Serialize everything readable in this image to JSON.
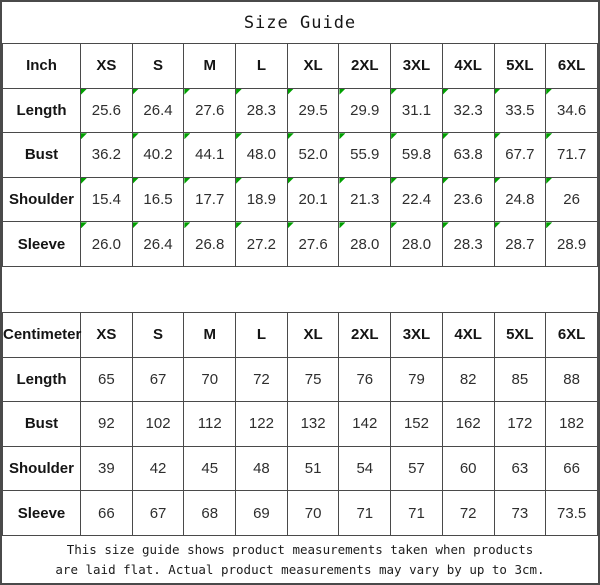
{
  "title": "Size Guide",
  "colors": {
    "border": "#4a4a4a",
    "text": "#1c1c1c",
    "flag_green": "#00a000",
    "background": "#ffffff"
  },
  "tables": [
    {
      "unit_label": "Inch",
      "sizes": [
        "XS",
        "S",
        "M",
        "L",
        "XL",
        "2XL",
        "3XL",
        "4XL",
        "5XL",
        "6XL"
      ],
      "rows": [
        {
          "label": "Length",
          "values": [
            "25.6",
            "26.4",
            "27.6",
            "28.3",
            "29.5",
            "29.9",
            "31.1",
            "32.3",
            "33.5",
            "34.6"
          ]
        },
        {
          "label": "Bust",
          "values": [
            "36.2",
            "40.2",
            "44.1",
            "48.0",
            "52.0",
            "55.9",
            "59.8",
            "63.8",
            "67.7",
            "71.7"
          ]
        },
        {
          "label": "Shoulder",
          "values": [
            "15.4",
            "16.5",
            "17.7",
            "18.9",
            "20.1",
            "21.3",
            "22.4",
            "23.6",
            "24.8",
            "26"
          ]
        },
        {
          "label": "Sleeve",
          "values": [
            "26.0",
            "26.4",
            "26.8",
            "27.2",
            "27.6",
            "28.0",
            "28.0",
            "28.3",
            "28.7",
            "28.9"
          ]
        }
      ],
      "has_flag_markers": true
    },
    {
      "unit_label": "Centimeter",
      "sizes": [
        "XS",
        "S",
        "M",
        "L",
        "XL",
        "2XL",
        "3XL",
        "4XL",
        "5XL",
        "6XL"
      ],
      "rows": [
        {
          "label": "Length",
          "values": [
            "65",
            "67",
            "70",
            "72",
            "75",
            "76",
            "79",
            "82",
            "85",
            "88"
          ]
        },
        {
          "label": "Bust",
          "values": [
            "92",
            "102",
            "112",
            "122",
            "132",
            "142",
            "152",
            "162",
            "172",
            "182"
          ]
        },
        {
          "label": "Shoulder",
          "values": [
            "39",
            "42",
            "45",
            "48",
            "51",
            "54",
            "57",
            "60",
            "63",
            "66"
          ]
        },
        {
          "label": "Sleeve",
          "values": [
            "66",
            "67",
            "68",
            "69",
            "70",
            "71",
            "71",
            "72",
            "73",
            "73.5"
          ]
        }
      ],
      "has_flag_markers": false
    }
  ],
  "footer": {
    "line1": "This size guide shows product measurements taken when products",
    "line2": "are laid flat. Actual product measurements may vary by up to 3cm."
  }
}
